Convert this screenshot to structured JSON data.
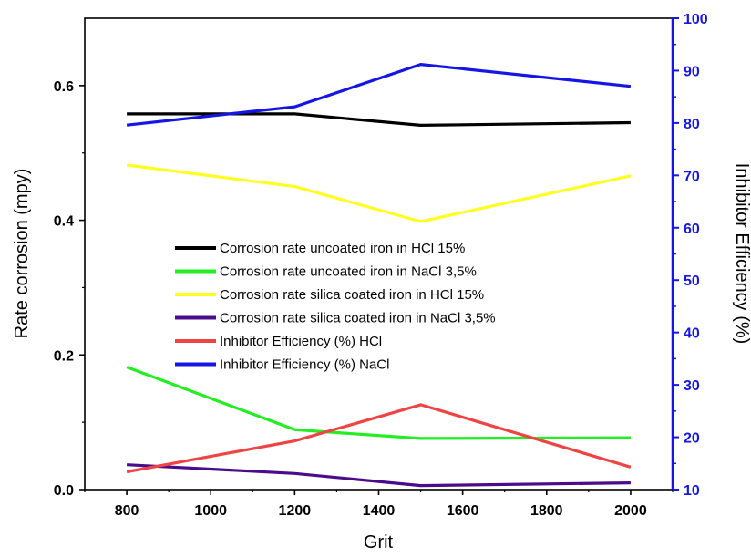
{
  "chart_data": {
    "type": "line",
    "x": [
      800,
      1200,
      1500,
      2000
    ],
    "xlabel": "Grit",
    "ylabel_left": "Rate corrosion (mpy)",
    "ylabel_right": "Inhibitor Efficiency (%)",
    "xlim": [
      700,
      2100
    ],
    "ylim_left": [
      0.0,
      0.7
    ],
    "ylim_right": [
      10,
      100
    ],
    "xticks": [
      800,
      1000,
      1200,
      1400,
      1600,
      1800,
      2000
    ],
    "yticks_left": [
      0.0,
      0.2,
      0.4,
      0.6
    ],
    "yticks_left_labels": [
      "0.0",
      "0.2",
      "0.4",
      "0.6"
    ],
    "yticks_right": [
      10,
      20,
      30,
      40,
      50,
      60,
      70,
      80,
      90,
      100
    ],
    "right_axis_color": "#1515e6",
    "legend_position": "center-left",
    "grid": false,
    "series": [
      {
        "name": "Corrosion rate uncoated iron in HCl 15%",
        "axis": "left",
        "color": "#000000",
        "values": [
          0.558,
          0.558,
          0.541,
          0.545
        ]
      },
      {
        "name": "Corrosion rate uncoated iron in NaCl 3,5%",
        "axis": "left",
        "color": "#22ee22",
        "values": [
          0.182,
          0.089,
          0.076,
          0.077
        ]
      },
      {
        "name": "Corrosion rate silica coated iron in HCl 15%",
        "axis": "left",
        "color": "#ffff22",
        "values": [
          0.482,
          0.45,
          0.398,
          0.466
        ]
      },
      {
        "name": "Corrosion rate silica coated iron in NaCl 3,5%",
        "axis": "left",
        "color": "#4b0c8c",
        "values": [
          0.037,
          0.024,
          0.006,
          0.01
        ]
      },
      {
        "name": "Inhibitor Efficiency (%) HCl",
        "axis": "right",
        "color": "#ee4444",
        "values": [
          13.4,
          19.3,
          26.2,
          14.3
        ]
      },
      {
        "name": "Inhibitor Efficiency (%) NaCl",
        "axis": "right",
        "color": "#1515e6",
        "values": [
          79.6,
          83.1,
          91.2,
          87.0
        ]
      }
    ]
  }
}
